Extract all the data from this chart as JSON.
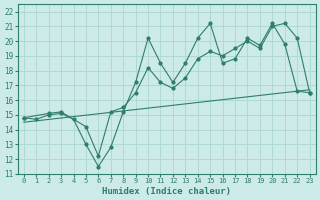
{
  "title": "",
  "xlabel": "Humidex (Indice chaleur)",
  "xlim": [
    -0.5,
    23.5
  ],
  "ylim": [
    11,
    22.5
  ],
  "xticks": [
    0,
    1,
    2,
    3,
    4,
    5,
    6,
    7,
    8,
    9,
    10,
    11,
    12,
    13,
    14,
    15,
    16,
    17,
    18,
    19,
    20,
    21,
    22,
    23
  ],
  "yticks": [
    11,
    12,
    13,
    14,
    15,
    16,
    17,
    18,
    19,
    20,
    21,
    22
  ],
  "bg_color": "#cceae7",
  "line_color": "#2e7d6e",
  "grid_color": "#b0d8d4",
  "line1_x": [
    0,
    1,
    2,
    3,
    4,
    5,
    6,
    7,
    8,
    9,
    10,
    11,
    12,
    13,
    14,
    15,
    16,
    17,
    18,
    19,
    20,
    21,
    22,
    23
  ],
  "line1_y": [
    14.8,
    14.7,
    15.0,
    15.1,
    14.7,
    13.0,
    11.5,
    12.8,
    15.2,
    17.2,
    20.2,
    18.5,
    17.2,
    18.5,
    20.2,
    21.2,
    18.5,
    18.8,
    20.2,
    19.7,
    21.2,
    19.8,
    16.6,
    16.5
  ],
  "line2_x": [
    0,
    2,
    3,
    5,
    6,
    7,
    8,
    9,
    10,
    11,
    12,
    13,
    14,
    15,
    16,
    17,
    18,
    19,
    20,
    21,
    22,
    23
  ],
  "line2_y": [
    14.8,
    15.1,
    15.2,
    14.2,
    12.2,
    15.2,
    15.5,
    16.5,
    18.2,
    17.2,
    16.8,
    17.5,
    18.8,
    19.3,
    19.0,
    19.5,
    20.0,
    19.5,
    21.0,
    21.2,
    20.2,
    16.5
  ],
  "line3_x": [
    0,
    23
  ],
  "line3_y": [
    14.5,
    16.7
  ]
}
